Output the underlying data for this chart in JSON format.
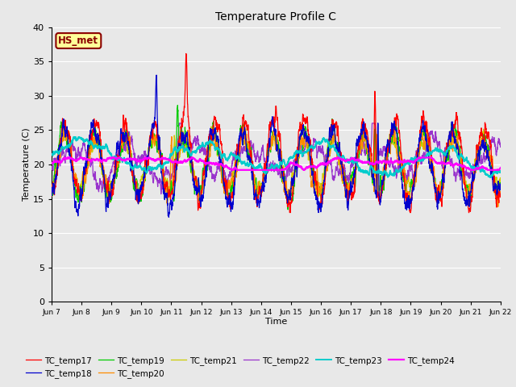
{
  "title": "Temperature Profile C",
  "xlabel": "Time",
  "ylabel": "Temperature (C)",
  "ylim": [
    0,
    40
  ],
  "annotation_text": "HS_met",
  "annotation_color": "#8B0000",
  "annotation_bg": "#FFFF99",
  "plot_bg_color": "#E8E8E8",
  "fig_bg_color": "#E8E8E8",
  "series_colors": {
    "TC_temp17": "#FF0000",
    "TC_temp18": "#0000CD",
    "TC_temp19": "#00CC00",
    "TC_temp20": "#FF8C00",
    "TC_temp21": "#CCCC00",
    "TC_temp22": "#9933CC",
    "TC_temp23": "#00CCCC",
    "TC_temp24": "#FF00FF"
  },
  "xtick_labels": [
    "Jun 7",
    "Jun 8",
    "Jun 9",
    "Jun 10",
    "Jun 11",
    "Jun 12",
    "Jun 13",
    "Jun 14",
    "Jun 15",
    "Jun 16",
    "Jun 17",
    "Jun 18",
    "Jun 19",
    "Jun 20",
    "Jun 21",
    "Jun 22"
  ],
  "ytick_values": [
    0,
    5,
    10,
    15,
    20,
    25,
    30,
    35,
    40
  ],
  "legend_order": [
    "TC_temp17",
    "TC_temp18",
    "TC_temp19",
    "TC_temp20",
    "TC_temp21",
    "TC_temp22",
    "TC_temp23",
    "TC_temp24"
  ]
}
